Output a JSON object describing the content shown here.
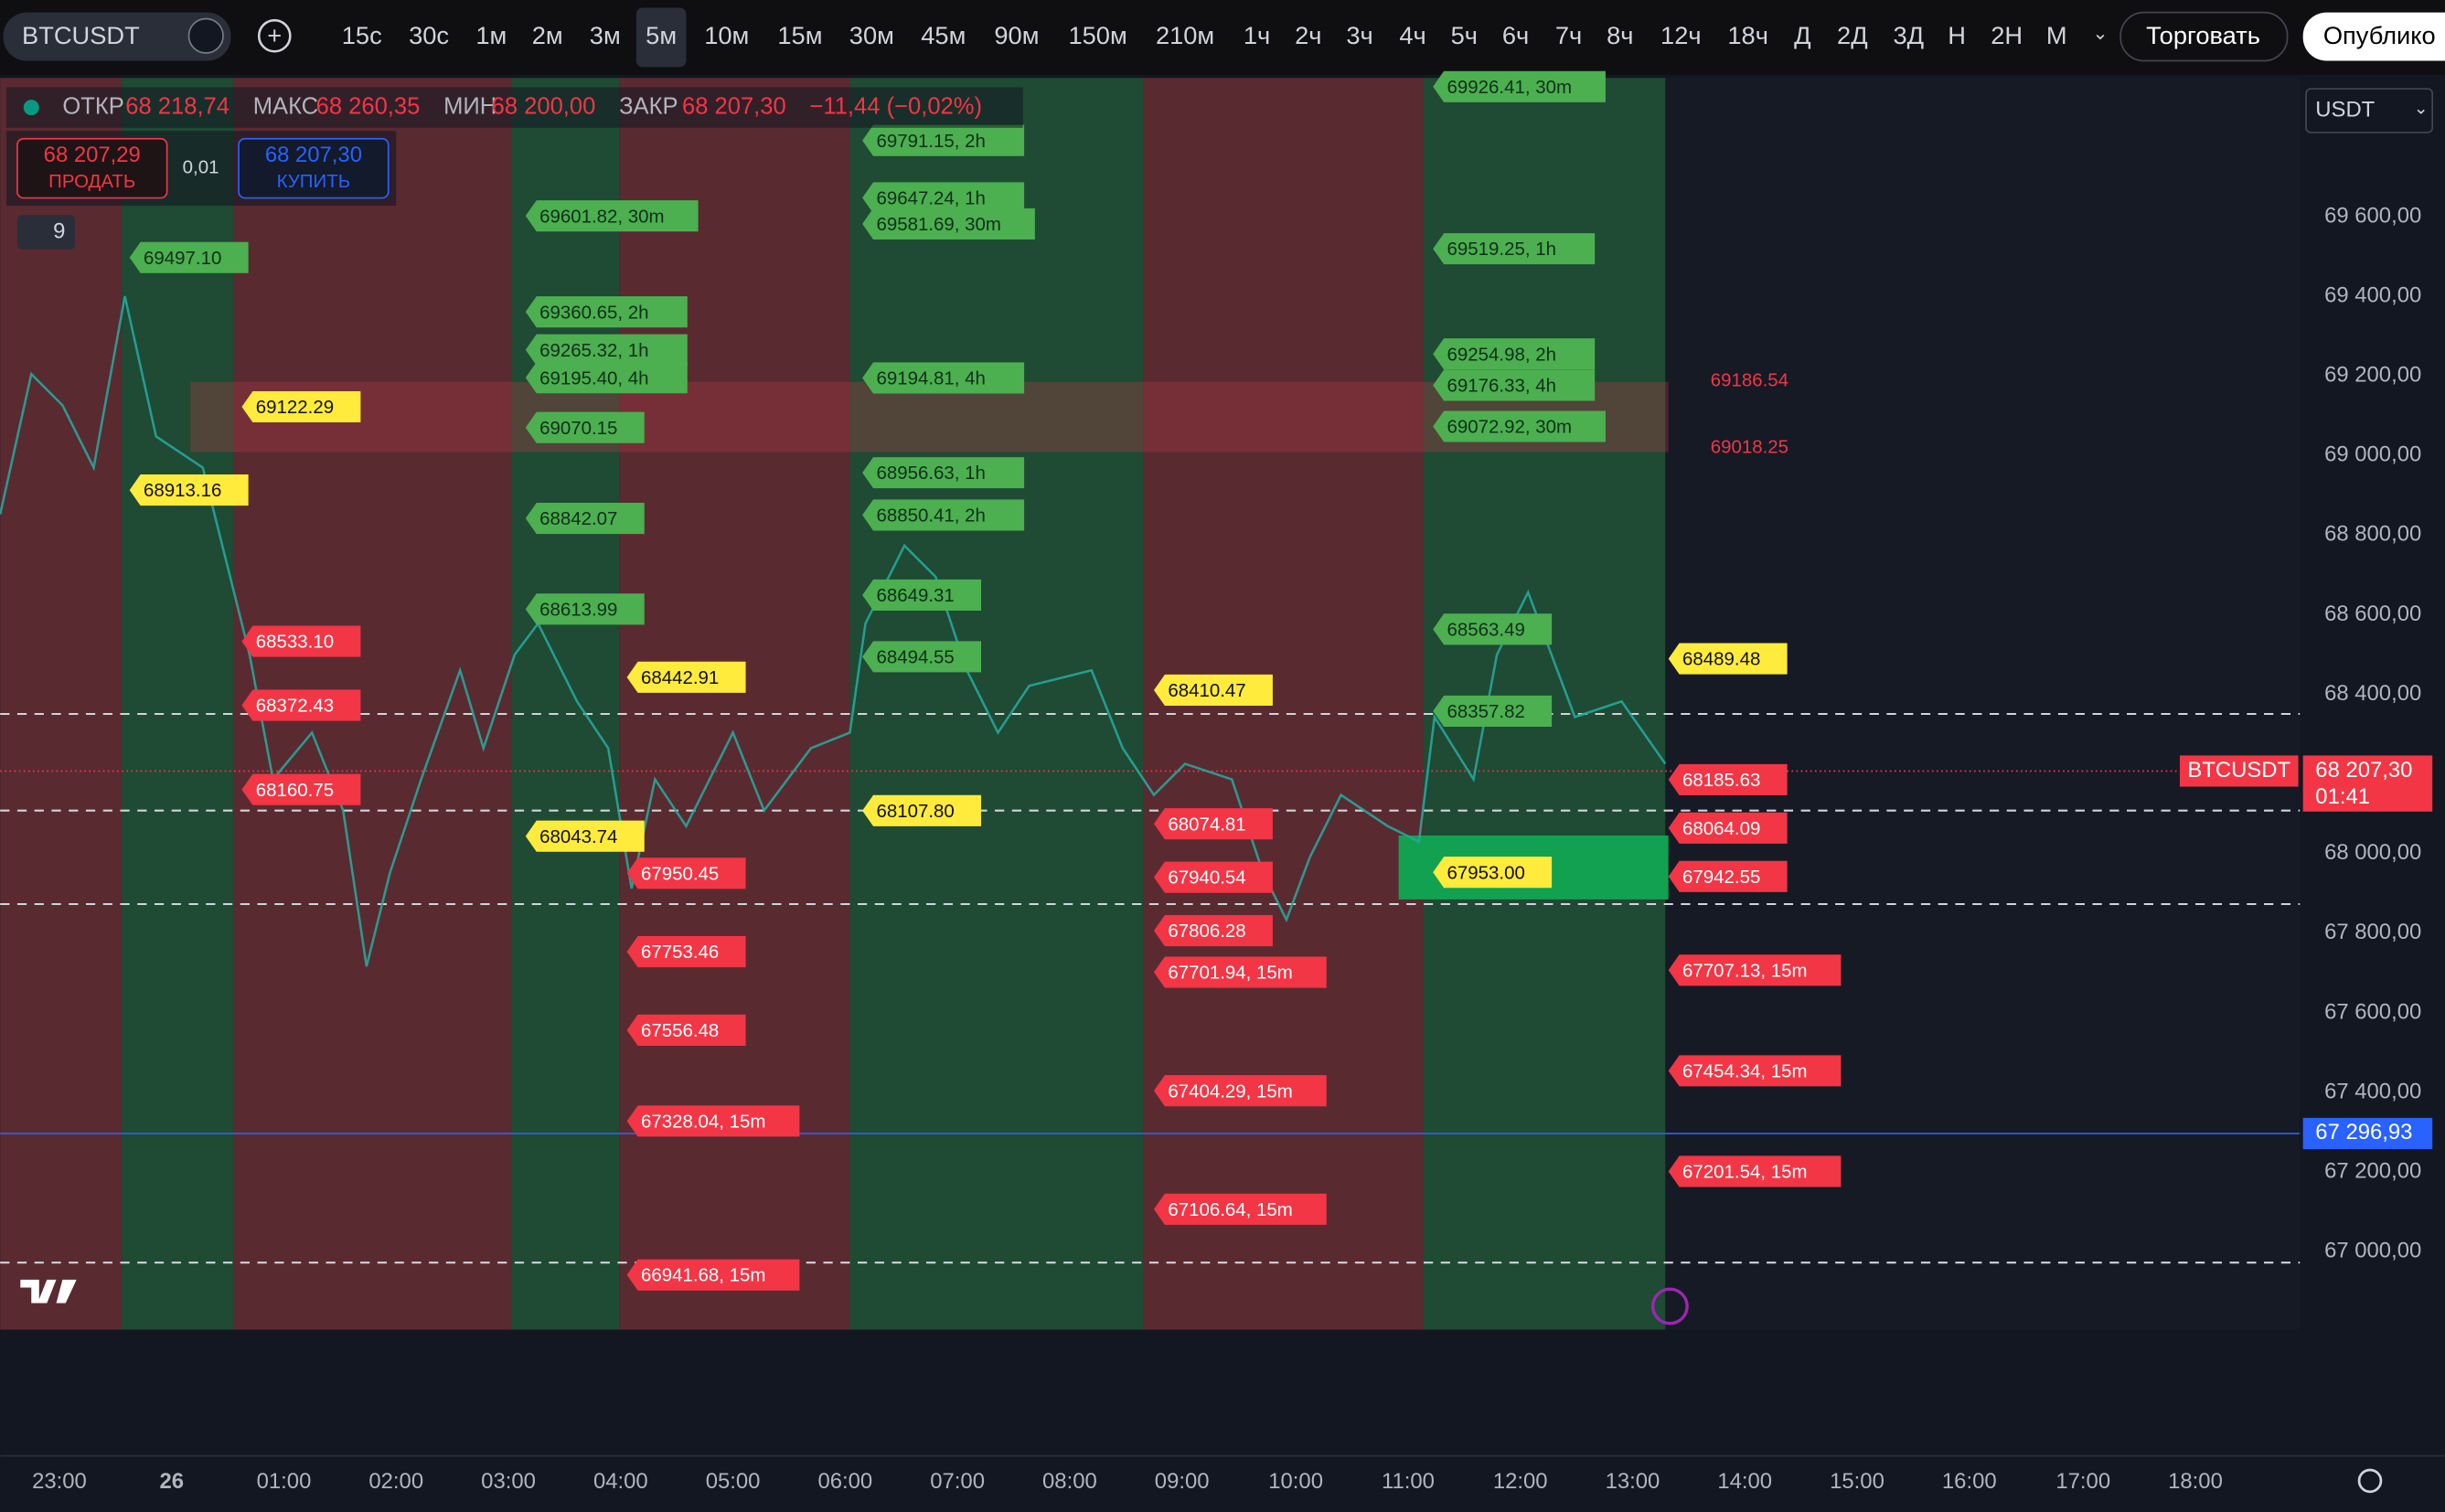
{
  "toolbar": {
    "symbol": "BTCUSDT",
    "intervals": [
      "15с",
      "30с",
      "1м",
      "2м",
      "3м",
      "5м",
      "10м",
      "15м",
      "30м",
      "45м",
      "90м",
      "150м",
      "210м",
      "1ч",
      "2ч",
      "3ч",
      "4ч",
      "5ч",
      "6ч",
      "7ч",
      "8ч",
      "12ч",
      "18ч",
      "Д",
      "2Д",
      "3Д",
      "Н",
      "2Н",
      "М"
    ],
    "active_interval": "5м",
    "trade_button": "Торговать",
    "publish_button": "Опублико"
  },
  "ohlc": [
    {
      "key": "ОТКР",
      "value": "68 218,74"
    },
    {
      "key": "МАКС",
      "value": "68 260,35"
    },
    {
      "key": "МИН",
      "value": "68 200,00"
    },
    {
      "key": "ЗАКР",
      "value": "68 207,30"
    }
  ],
  "change": "−11,44 (−0,02%)",
  "trade": {
    "sell_price": "68 207,29",
    "sell": "ПРОДАТЬ",
    "quantity": "0,01",
    "buy_price": "68 207,30",
    "buy": "КУПИТЬ"
  },
  "indicators_count": "9",
  "currency": "USDT",
  "price_axis": {
    "ylim": [
      66680,
      69830
    ],
    "ticks": [
      {
        "value": 67000,
        "label": "67 000,00"
      },
      {
        "value": 67200,
        "label": "67 200,00"
      },
      {
        "value": 67400,
        "label": "67 400,00"
      },
      {
        "value": 67600,
        "label": "67 600,00"
      },
      {
        "value": 67800,
        "label": "67 800,00"
      },
      {
        "value": 68000,
        "label": "68 000,00"
      },
      {
        "value": 68200,
        "label": "68 200,00"
      },
      {
        "value": 68400,
        "label": "68 400,00"
      },
      {
        "value": 68600,
        "label": "68 600,00"
      },
      {
        "value": 68800,
        "label": "68 800,00"
      },
      {
        "value": 69000,
        "label": "69 000,00"
      },
      {
        "value": 69200,
        "label": "69 200,00"
      },
      {
        "value": 69400,
        "label": "69 400,00"
      },
      {
        "value": 69600,
        "label": "69 600,00"
      }
    ]
  },
  "last_price": {
    "symbol": "BTCUSDT",
    "value": 68207.3,
    "label": "68 207,30",
    "countdown": "01:41"
  },
  "alert_line": {
    "value": 67296.93,
    "label": "67 296,93"
  },
  "time_axis": [
    "23:00",
    "26",
    "01:00",
    "02:00",
    "03:00",
    "04:00",
    "05:00",
    "06:00",
    "07:00",
    "08:00",
    "09:00",
    "10:00",
    "11:00",
    "12:00",
    "13:00",
    "14:00",
    "15:00",
    "16:00",
    "17:00",
    "18:00"
  ],
  "levels": [
    {
      "price": 69497.1,
      "label": "69497.10",
      "kind": "green"
    },
    {
      "price": 69122.29,
      "label": "69122.29",
      "kind": "yellow"
    },
    {
      "price": 68913.16,
      "label": "68913.16",
      "kind": "yellow"
    },
    {
      "price": 68533.1,
      "label": "68533.10",
      "kind": "red"
    },
    {
      "price": 68372.43,
      "label": "68372.43",
      "kind": "red"
    },
    {
      "price": 68160.75,
      "label": "68160.75",
      "kind": "red"
    },
    {
      "price": 69601.82,
      "label": "69601.82, 30m",
      "kind": "green"
    },
    {
      "price": 69360.65,
      "label": "69360.65, 2h",
      "kind": "green"
    },
    {
      "price": 69265.32,
      "label": "69265.32, 1h",
      "kind": "green"
    },
    {
      "price": 69195.4,
      "label": "69195.40, 4h",
      "kind": "green"
    },
    {
      "price": 69070.15,
      "label": "69070.15",
      "kind": "green"
    },
    {
      "price": 68842.07,
      "label": "68842.07",
      "kind": "green"
    },
    {
      "price": 68613.99,
      "label": "68613.99",
      "kind": "green"
    },
    {
      "price": 68043.74,
      "label": "68043.74",
      "kind": "yellow"
    },
    {
      "price": 68442.91,
      "label": "68442.91",
      "kind": "yellow"
    },
    {
      "price": 67950.45,
      "label": "67950.45",
      "kind": "red"
    },
    {
      "price": 67753.46,
      "label": "67753.46",
      "kind": "red"
    },
    {
      "price": 67556.48,
      "label": "67556.48",
      "kind": "red"
    },
    {
      "price": 67328.04,
      "label": "67328.04, 15m",
      "kind": "red"
    },
    {
      "price": 66941.68,
      "label": "66941.68, 15m",
      "kind": "red"
    },
    {
      "price": 69791.15,
      "label": "69791.15, 2h",
      "kind": "green"
    },
    {
      "price": 69647.24,
      "label": "69647.24, 1h",
      "kind": "green"
    },
    {
      "price": 69581.69,
      "label": "69581.69, 30m",
      "kind": "green"
    },
    {
      "price": 69194.81,
      "label": "69194.81, 4h",
      "kind": "green"
    },
    {
      "price": 68956.63,
      "label": "68956.63, 1h",
      "kind": "green"
    },
    {
      "price": 68850.41,
      "label": "68850.41, 2h",
      "kind": "green"
    },
    {
      "price": 68649.31,
      "label": "68649.31",
      "kind": "green"
    },
    {
      "price": 68494.55,
      "label": "68494.55",
      "kind": "green"
    },
    {
      "price": 68107.8,
      "label": "68107.80",
      "kind": "yellow"
    },
    {
      "price": 68410.47,
      "label": "68410.47",
      "kind": "yellow"
    },
    {
      "price": 68074.81,
      "label": "68074.81",
      "kind": "red"
    },
    {
      "price": 67940.54,
      "label": "67940.54",
      "kind": "red"
    },
    {
      "price": 67806.28,
      "label": "67806.28",
      "kind": "red"
    },
    {
      "price": 67701.94,
      "label": "67701.94, 15m",
      "kind": "red"
    },
    {
      "price": 67404.29,
      "label": "67404.29, 15m",
      "kind": "red"
    },
    {
      "price": 67106.64,
      "label": "67106.64, 15m",
      "kind": "red"
    },
    {
      "price": 69926.41,
      "label": "69926.41, 30m",
      "kind": "green"
    },
    {
      "price": 69519.25,
      "label": "69519.25, 1h",
      "kind": "green"
    },
    {
      "price": 69254.98,
      "label": "69254.98, 2h",
      "kind": "green"
    },
    {
      "price": 69176.33,
      "label": "69176.33, 4h",
      "kind": "green"
    },
    {
      "price": 69072.92,
      "label": "69072.92, 30m",
      "kind": "green"
    },
    {
      "price": 68563.49,
      "label": "68563.49",
      "kind": "green"
    },
    {
      "price": 68357.82,
      "label": "68357.82",
      "kind": "green"
    },
    {
      "price": 67953.0,
      "label": "67953.00",
      "kind": "yellow"
    },
    {
      "price": 68489.48,
      "label": "68489.48",
      "kind": "yellow"
    },
    {
      "price": 68185.63,
      "label": "68185.63",
      "kind": "red"
    },
    {
      "price": 68064.09,
      "label": "68064.09",
      "kind": "red"
    },
    {
      "price": 67942.55,
      "label": "67942.55",
      "kind": "red"
    },
    {
      "price": 67707.13,
      "label": "67707.13, 15m",
      "kind": "red"
    },
    {
      "price": 67454.34,
      "label": "67454.34, 15m",
      "kind": "red"
    },
    {
      "price": 67201.54,
      "label": "67201.54, 15m",
      "kind": "red"
    }
  ],
  "zone_labels": [
    {
      "price": 69186.54,
      "label": "69186.54"
    },
    {
      "price": 69018.25,
      "label": "69018.25"
    }
  ]
}
